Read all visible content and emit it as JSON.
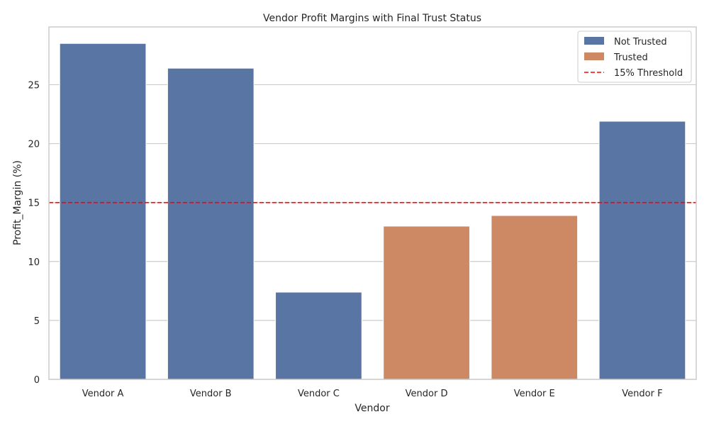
{
  "colors": {
    "not_trusted": "#5975a4",
    "trusted": "#cc8963",
    "threshold": "#ff0000",
    "grid": "#cccccc",
    "frame": "#cccccc"
  },
  "chart_data": {
    "type": "bar",
    "title": "Vendor Profit Margins with Final Trust Status",
    "xlabel": "Vendor",
    "ylabel": "Profit_Margin (%)",
    "ylim": [
      0,
      29.9
    ],
    "yticks": [
      0,
      5,
      10,
      15,
      20,
      25
    ],
    "grid": "horizontal",
    "legend_position": "top-right",
    "categories": [
      "Vendor A",
      "Vendor B",
      "Vendor C",
      "Vendor D",
      "Vendor E",
      "Vendor F"
    ],
    "values": [
      28.5,
      26.4,
      7.4,
      13.0,
      13.9,
      21.9
    ],
    "status": [
      "Not Trusted",
      "Not Trusted",
      "Not Trusted",
      "Trusted",
      "Trusted",
      "Not Trusted"
    ],
    "threshold": {
      "value": 15,
      "label": "15% Threshold"
    },
    "legend": [
      {
        "label": "Not Trusted",
        "kind": "bar",
        "color_key": "not_trusted"
      },
      {
        "label": "Trusted",
        "kind": "bar",
        "color_key": "trusted"
      },
      {
        "label": "15% Threshold",
        "kind": "dashed-line",
        "color_key": "threshold"
      }
    ]
  }
}
